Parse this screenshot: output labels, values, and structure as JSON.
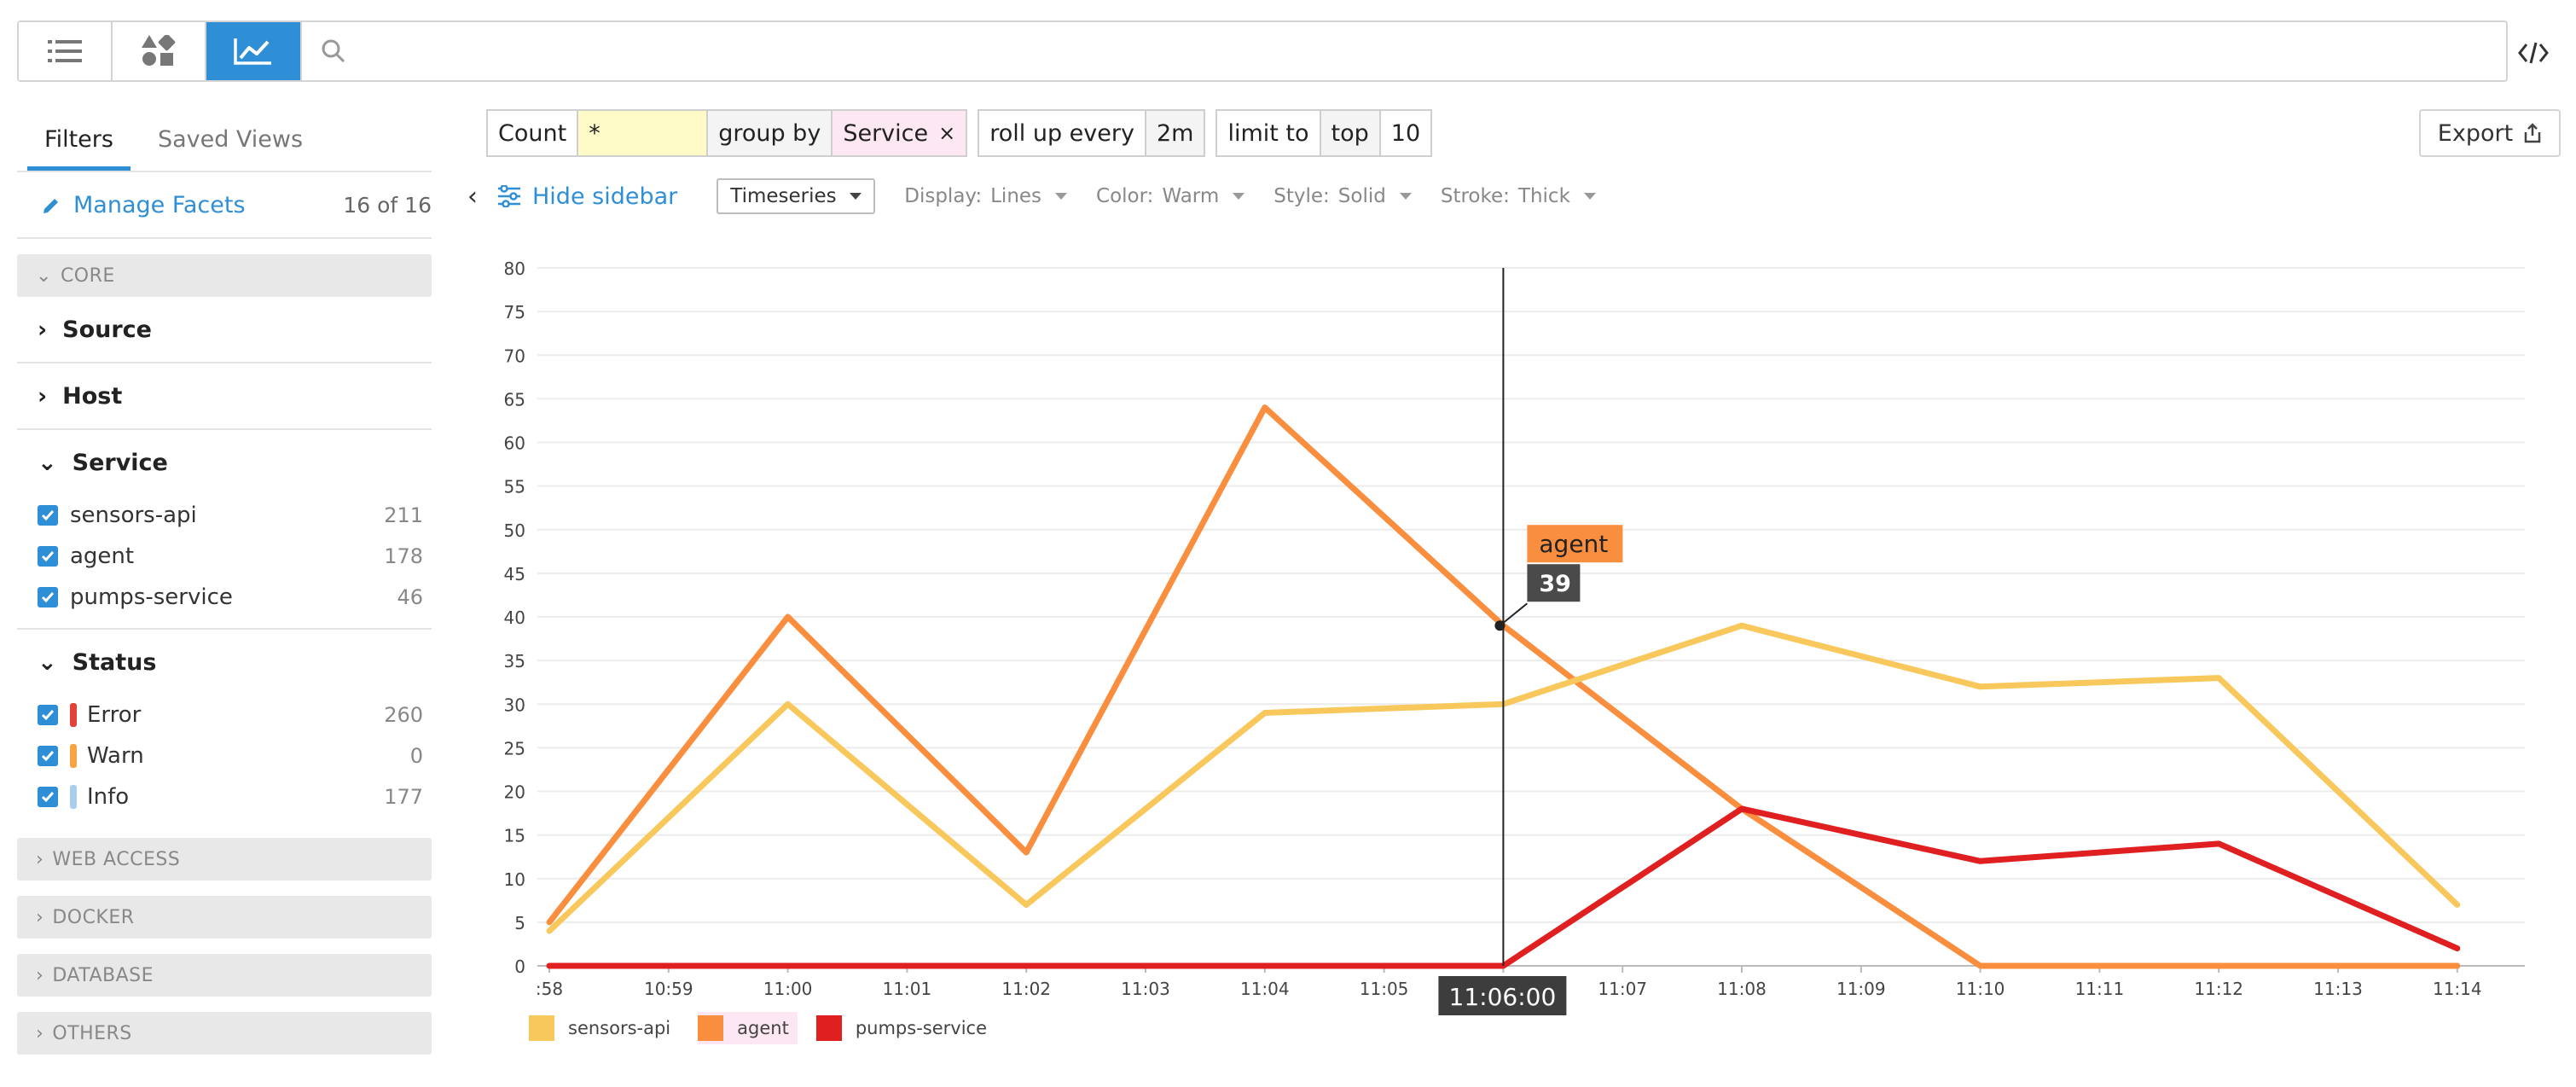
{
  "toolbar": {
    "views": [
      {
        "name": "list-view-icon"
      },
      {
        "name": "patterns-view-icon"
      },
      {
        "name": "analytics-view-icon",
        "active": true
      }
    ],
    "search_icon": "search-icon",
    "code_icon": "code-icon",
    "accent": "#2f8fd6"
  },
  "sidebar": {
    "tabs": [
      "Filters",
      "Saved Views"
    ],
    "manage_label": "Manage Facets",
    "manage_count": "16 of 16",
    "core_label": "CORE",
    "source_label": "Source",
    "host_label": "Host",
    "service": {
      "label": "Service",
      "items": [
        {
          "label": "sensors-api",
          "count": "211"
        },
        {
          "label": "agent",
          "count": "178"
        },
        {
          "label": "pumps-service",
          "count": "46"
        }
      ]
    },
    "status": {
      "label": "Status",
      "items": [
        {
          "label": "Error",
          "count": "260",
          "color": "#e0433a"
        },
        {
          "label": "Warn",
          "count": "0",
          "color": "#f7a543"
        },
        {
          "label": "Info",
          "count": "177",
          "color": "#a9cdea"
        }
      ]
    },
    "groups": [
      "WEB ACCESS",
      "DOCKER",
      "DATABASE",
      "OTHERS"
    ]
  },
  "query": {
    "count_label": "Count",
    "count_value": "*",
    "group_by_label": "group by",
    "group_by_value": "Service",
    "rollup_label": "roll up every",
    "rollup_value": "2m",
    "limit_label": "limit to",
    "limit_mode": "top",
    "limit_value": "10"
  },
  "export_label": "Export",
  "options": {
    "hide_sidebar": "Hide sidebar",
    "viz_type": "Timeseries",
    "display_label": "Display:",
    "display_value": "Lines",
    "color_label": "Color:",
    "color_value": "Warm",
    "style_label": "Style:",
    "style_value": "Solid",
    "stroke_label": "Stroke:",
    "stroke_value": "Thick"
  },
  "chart_data": {
    "type": "line",
    "x": [
      ":58",
      "10:59",
      "11:00",
      "11:01",
      "11:02",
      "11:03",
      "11:04",
      "11:05",
      "11:06",
      "11:07",
      "11:08",
      "11:09",
      "11:10",
      "11:11",
      "11:12",
      "11:13",
      "11:14"
    ],
    "series": [
      {
        "name": "sensors-api",
        "color": "#f9c85c",
        "points": [
          [
            ":58",
            4
          ],
          [
            "11:00",
            30
          ],
          [
            "11:02",
            7
          ],
          [
            "11:04",
            29
          ],
          [
            "11:06",
            30
          ],
          [
            "11:08",
            39
          ],
          [
            "11:10",
            32
          ],
          [
            "11:12",
            33
          ],
          [
            "11:14",
            7
          ]
        ]
      },
      {
        "name": "agent",
        "color": "#f98e3e",
        "points": [
          [
            ":58",
            5
          ],
          [
            "11:00",
            40
          ],
          [
            "11:02",
            13
          ],
          [
            "11:04",
            64
          ],
          [
            "11:06",
            39
          ],
          [
            "11:08",
            18
          ],
          [
            "11:10",
            0
          ],
          [
            "11:12",
            0
          ],
          [
            "11:14",
            0
          ]
        ]
      },
      {
        "name": "pumps-service",
        "color": "#e02020",
        "points": [
          [
            ":58",
            0
          ],
          [
            "11:00",
            0
          ],
          [
            "11:02",
            0
          ],
          [
            "11:04",
            0
          ],
          [
            "11:06",
            0
          ],
          [
            "11:08",
            18
          ],
          [
            "11:10",
            12
          ],
          [
            "11:12",
            14
          ],
          [
            "11:14",
            2
          ]
        ]
      }
    ],
    "y_ticks": [
      0,
      5,
      10,
      15,
      20,
      25,
      30,
      35,
      40,
      45,
      50,
      55,
      60,
      65,
      70,
      75,
      80
    ],
    "ylim": [
      0,
      80
    ],
    "grid": true,
    "cursor": {
      "x": "11:06",
      "label": "11:06:00"
    },
    "tooltip": {
      "series": "agent",
      "value": "39"
    },
    "legend_position": "bottom-left"
  }
}
